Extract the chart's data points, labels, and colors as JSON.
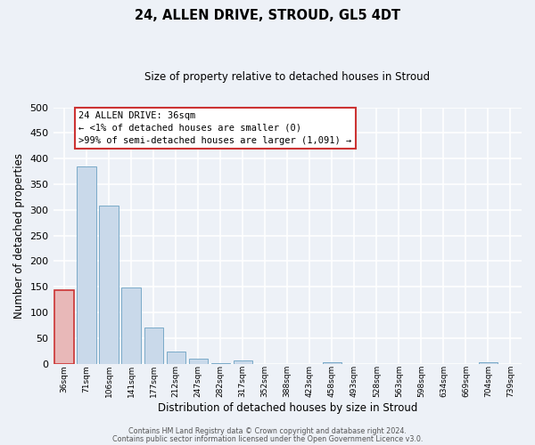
{
  "title": "24, ALLEN DRIVE, STROUD, GL5 4DT",
  "subtitle": "Size of property relative to detached houses in Stroud",
  "xlabel": "Distribution of detached houses by size in Stroud",
  "ylabel": "Number of detached properties",
  "annotation_title": "24 ALLEN DRIVE: 36sqm",
  "annotation_line2": "← <1% of detached houses are smaller (0)",
  "annotation_line3": ">99% of semi-detached houses are larger (1,091) →",
  "footer_line1": "Contains HM Land Registry data © Crown copyright and database right 2024.",
  "footer_line2": "Contains public sector information licensed under the Open Government Licence v3.0.",
  "bar_color": "#c9d9ea",
  "bar_edge_color": "#7aaac8",
  "highlight_bar_color": "#e8b8b8",
  "highlight_bar_edge_color": "#cc3333",
  "background_color": "#edf1f7",
  "grid_color": "#ffffff",
  "bin_labels": [
    "36sqm",
    "71sqm",
    "106sqm",
    "141sqm",
    "177sqm",
    "212sqm",
    "247sqm",
    "282sqm",
    "317sqm",
    "352sqm",
    "388sqm",
    "423sqm",
    "458sqm",
    "493sqm",
    "528sqm",
    "563sqm",
    "598sqm",
    "634sqm",
    "669sqm",
    "704sqm",
    "739sqm"
  ],
  "bar_heights": [
    143,
    385,
    308,
    149,
    70,
    24,
    9,
    2,
    7,
    0,
    0,
    0,
    3,
    0,
    0,
    0,
    0,
    0,
    0,
    3,
    0
  ],
  "highlight_index": 0,
  "ylim": [
    0,
    500
  ],
  "yticks": [
    0,
    50,
    100,
    150,
    200,
    250,
    300,
    350,
    400,
    450,
    500
  ]
}
